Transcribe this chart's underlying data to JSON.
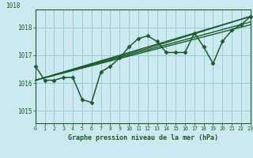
{
  "title": "Graphe pression niveau de la mer (hPa)",
  "bg_color": "#cce9f0",
  "grid_color": "#99cdd8",
  "line_color": "#1a5c2a",
  "xlim": [
    0,
    23
  ],
  "ylim": [
    1014.55,
    1018.65
  ],
  "yticks": [
    1015,
    1016,
    1017,
    1018
  ],
  "xticks": [
    0,
    1,
    2,
    3,
    4,
    5,
    6,
    7,
    8,
    9,
    10,
    11,
    12,
    13,
    14,
    15,
    16,
    17,
    18,
    19,
    20,
    21,
    22,
    23
  ],
  "series": [
    {
      "x": [
        0,
        1,
        2,
        3,
        4,
        5,
        6,
        7,
        8,
        9,
        10,
        11,
        12,
        13,
        14,
        15,
        16,
        17,
        18,
        19,
        20,
        21,
        22,
        23
      ],
      "y": [
        1016.6,
        1016.1,
        1016.1,
        1016.2,
        1016.2,
        1015.4,
        1015.3,
        1016.4,
        1016.6,
        1016.9,
        1017.3,
        1017.6,
        1017.7,
        1017.5,
        1017.1,
        1017.1,
        1017.1,
        1017.8,
        1017.3,
        1016.7,
        1017.5,
        1017.9,
        1018.1,
        1018.4
      ],
      "marker": "D",
      "markersize": 2.5,
      "linewidth": 1.1
    },
    {
      "x": [
        0,
        23
      ],
      "y": [
        1016.1,
        1018.4
      ],
      "marker": null,
      "linewidth": 1.0
    },
    {
      "x": [
        0,
        23
      ],
      "y": [
        1016.1,
        1018.1
      ],
      "marker": null,
      "linewidth": 1.0
    },
    {
      "x": [
        0,
        23
      ],
      "y": [
        1016.1,
        1018.2
      ],
      "marker": null,
      "linewidth": 1.0
    },
    {
      "x": [
        0,
        12,
        23
      ],
      "y": [
        1016.1,
        1017.25,
        1018.4
      ],
      "marker": null,
      "linewidth": 1.0
    }
  ]
}
